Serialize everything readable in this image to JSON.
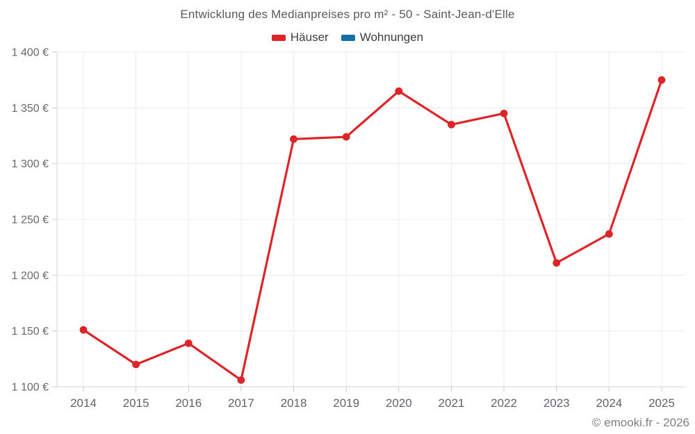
{
  "header": {
    "title": "Entwicklung des Medianpreises pro m² - 50 - Saint-Jean-d'Elle"
  },
  "legend": {
    "items": [
      {
        "label": "Häuser",
        "color": "#dc2429"
      },
      {
        "label": "Wohnungen",
        "color": "#1470a4"
      }
    ]
  },
  "footer": {
    "credit": "© emooki.fr - 2026"
  },
  "colors": {
    "hauser_red": "#dc2429",
    "wohnungen_blue": "#1470a4",
    "gridline": "#ececec",
    "axis_line": "#d6d6d6",
    "tick": "#c9c9c9"
  },
  "chart_data": {
    "type": "line",
    "title": "Entwicklung des Medianpreises pro m² - 50 - Saint-Jean-d'Elle",
    "xlabel": "",
    "ylabel": "",
    "categories": [
      "2014",
      "2015",
      "2016",
      "2017",
      "2018",
      "2019",
      "2020",
      "2021",
      "2022",
      "2023",
      "2024",
      "2025"
    ],
    "series": [
      {
        "name": "Häuser",
        "color": "#dc2429",
        "values": [
          1151,
          1120,
          1139,
          1106,
          1322,
          1324,
          1365,
          1335,
          1345,
          1211,
          1237,
          1375
        ]
      },
      {
        "name": "Wohnungen",
        "color": "#1470a4",
        "values": []
      }
    ],
    "ylim": [
      1100,
      1400
    ],
    "y_ticks": [
      1100,
      1150,
      1200,
      1250,
      1300,
      1350,
      1400
    ],
    "y_tick_labels": [
      "1 100 €",
      "1 150 €",
      "1 200 €",
      "1 250 €",
      "1 300 €",
      "1 350 €",
      "1 400 €"
    ],
    "grid": true,
    "legend_position": "top",
    "currency": "€"
  }
}
